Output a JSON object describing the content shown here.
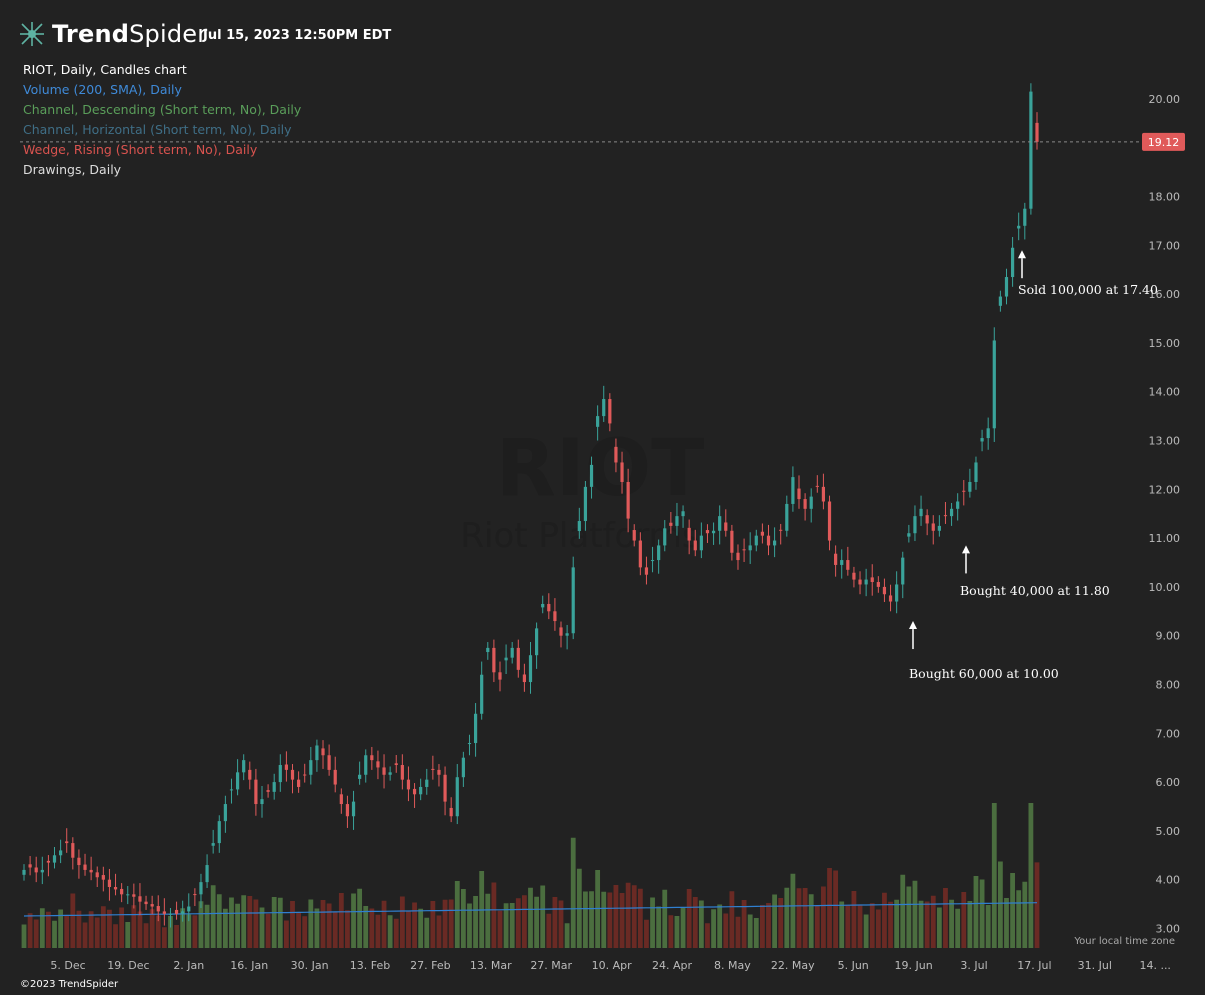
{
  "header": {
    "brand_bold": "Trend",
    "brand_light": "Spider",
    "timestamp": "Jul 15, 2023 12:50PM EDT"
  },
  "legend": {
    "items": [
      {
        "text": "RIOT, Daily, Candles chart",
        "color": "#ffffff"
      },
      {
        "text": "Volume (200, SMA), Daily",
        "color": "#3f8ad8"
      },
      {
        "text": "Channel, Descending (Short term, No), Daily",
        "color": "#5a9e5a"
      },
      {
        "text": "Channel, Horizontal (Short term, No), Daily",
        "color": "#3f6e86"
      },
      {
        "text": "Wedge, Rising (Short term, No), Daily",
        "color": "#d9534f"
      },
      {
        "text": "Drawings, Daily",
        "color": "#dddddd"
      }
    ]
  },
  "watermark": {
    "symbol": "RIOT",
    "name": "Riot Platforms"
  },
  "footer": {
    "copyright": "©2023 TrendSpider",
    "timezone": "Your local time zone"
  },
  "colors": {
    "up": "#3aa39a",
    "down": "#e05a5a",
    "vol_up": "#4b6e3f",
    "vol_down": "#6a2a24",
    "sma": "#2f7fd0",
    "price_badge": "#e05a5a"
  },
  "chart_data": {
    "type": "candlestick",
    "ylim": [
      2.6,
      20.9
    ],
    "y_ticks": [
      3,
      4,
      5,
      6,
      7,
      8,
      9,
      10,
      11,
      12,
      13,
      14,
      15,
      16,
      17,
      18,
      19,
      20
    ],
    "y_tick_labels": [
      "3.00",
      "4.00",
      "5.00",
      "6.00",
      "7.00",
      "8.00",
      "9.00",
      "10.00",
      "11.00",
      "12.00",
      "13.00",
      "14.00",
      "15.00",
      "16.00",
      "17.00",
      "18.00",
      "",
      "20.00"
    ],
    "x_tick_labels": [
      "5. Dec",
      "19. Dec",
      "2. Jan",
      "16. Jan",
      "30. Jan",
      "13. Feb",
      "27. Feb",
      "13. Mar",
      "27. Mar",
      "10. Apr",
      "24. Apr",
      "8. May",
      "22. May",
      "5. Jun",
      "19. Jun",
      "3. Jul",
      "17. Jul",
      "31. Jul",
      "14. ..."
    ],
    "last_price": 19.12,
    "last_price_label": "19.12",
    "closes": [
      4.2,
      4.25,
      4.15,
      4.2,
      4.35,
      4.5,
      4.6,
      4.75,
      4.45,
      4.3,
      4.2,
      4.15,
      4.05,
      4.0,
      3.85,
      3.8,
      3.7,
      3.7,
      3.65,
      3.55,
      3.5,
      3.45,
      3.35,
      3.3,
      3.3,
      3.3,
      3.35,
      3.45,
      3.7,
      3.95,
      4.3,
      4.75,
      5.2,
      5.55,
      5.85,
      6.2,
      6.45,
      6.05,
      5.55,
      5.65,
      5.8,
      6.0,
      6.35,
      6.25,
      6.05,
      5.9,
      6.15,
      6.45,
      6.75,
      6.55,
      6.25,
      5.95,
      5.55,
      5.3,
      5.6,
      6.15,
      6.55,
      6.45,
      6.3,
      6.15,
      6.2,
      6.35,
      6.05,
      5.85,
      5.75,
      5.9,
      6.05,
      6.25,
      6.15,
      5.6,
      5.3,
      6.1,
      6.5,
      6.8,
      7.4,
      8.2,
      8.75,
      8.25,
      8.1,
      8.55,
      8.75,
      8.3,
      8.05,
      8.6,
      9.15,
      9.65,
      9.5,
      9.3,
      9.0,
      9.05,
      10.4,
      11.35,
      12.05,
      12.5,
      13.5,
      13.85,
      13.35,
      12.55,
      12.15,
      11.4,
      10.95,
      10.4,
      10.25,
      10.55,
      10.85,
      11.2,
      11.25,
      11.45,
      11.55,
      10.95,
      10.75,
      11.05,
      11.1,
      11.15,
      11.45,
      11.15,
      10.7,
      10.55,
      10.75,
      10.85,
      11.05,
      11.05,
      10.85,
      10.95,
      11.15,
      11.7,
      12.25,
      11.8,
      11.6,
      11.85,
      12.05,
      11.75,
      10.95,
      10.45,
      10.55,
      10.35,
      10.15,
      10.05,
      10.15,
      10.1,
      10.0,
      9.85,
      9.7,
      10.05,
      10.6,
      11.1,
      11.45,
      11.6,
      11.3,
      11.15,
      11.25,
      11.45,
      11.6,
      11.75,
      11.95,
      12.15,
      12.55,
      13.05,
      13.25,
      15.05,
      15.95,
      16.35,
      16.95,
      17.4,
      17.75,
      20.15,
      19.12
    ],
    "annotations": [
      {
        "label": "Bought 60,000 at 10.00",
        "price": 10.0
      },
      {
        "label": "Bought 40,000 at 11.80",
        "price": 11.8
      },
      {
        "label": "Sold 100,000 at 17.40",
        "price": 17.4
      }
    ]
  }
}
